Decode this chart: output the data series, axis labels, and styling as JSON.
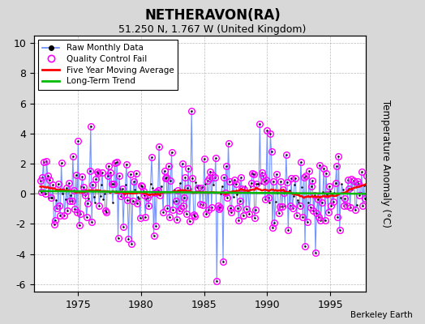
{
  "title": "NETHERAVON(RA)",
  "subtitle": "51.250 N, 1.767 W (United Kingdom)",
  "ylabel": "Temperature Anomaly (°C)",
  "watermark": "Berkeley Earth",
  "ylim": [
    -6.5,
    10.5
  ],
  "yticks": [
    -6,
    -4,
    -2,
    0,
    2,
    4,
    6,
    8,
    10
  ],
  "xlim": [
    1971.5,
    1997.8
  ],
  "xticks": [
    1975,
    1980,
    1985,
    1990,
    1995
  ],
  "raw_line_color": "#6688FF",
  "raw_dot_color": "#000000",
  "qc_fail_color": "#FF00FF",
  "moving_avg_color": "#FF0000",
  "trend_color": "#00BB00",
  "background_color": "#D8D8D8",
  "plot_bg_color": "#FFFFFF",
  "seed": 42,
  "n_months": 312,
  "start_year": 1972.0
}
